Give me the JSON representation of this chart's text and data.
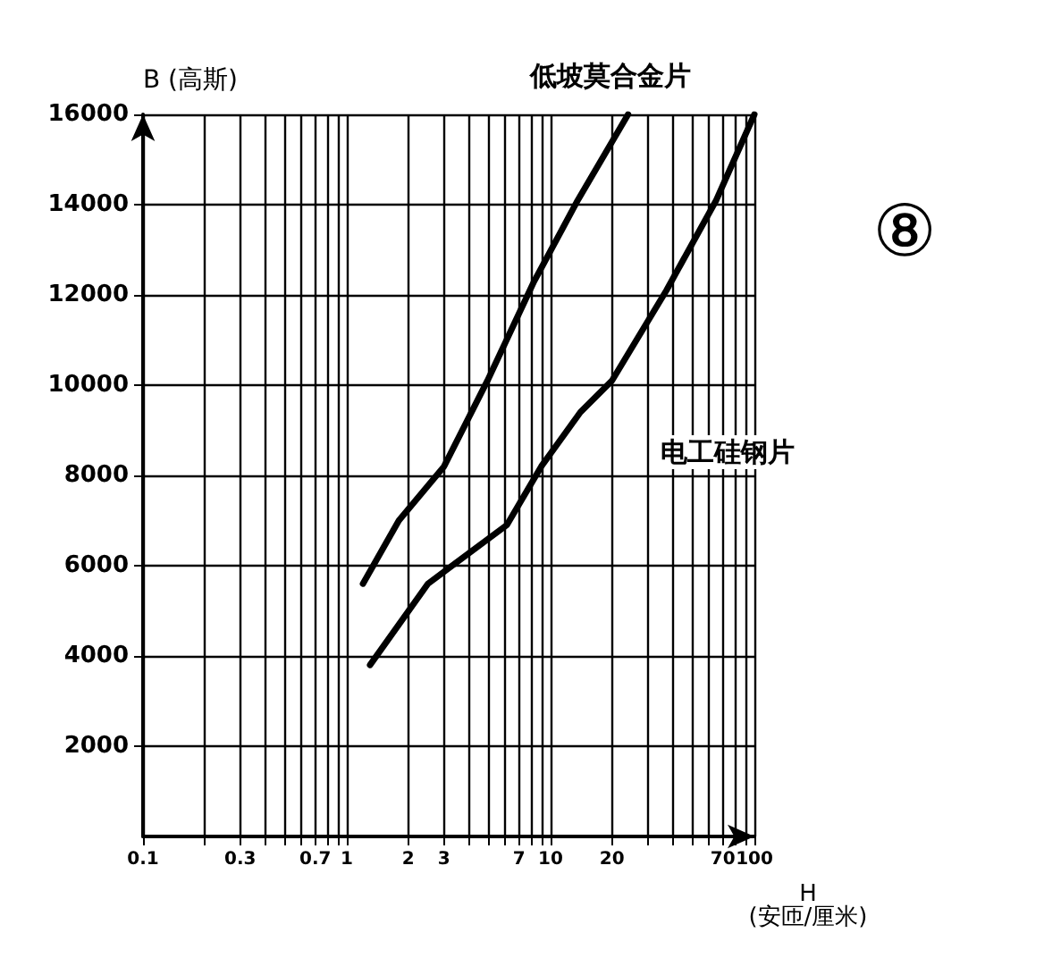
{
  "chart_data": {
    "type": "line",
    "ylabel": "B (高斯)",
    "xlabel": "H\n(安匝/厘米)",
    "annotations": [
      "⑧"
    ],
    "log": "x",
    "grid": true,
    "marker": "none",
    "line_style": "solid",
    "xlim": [
      0.1,
      100
    ],
    "ylim": [
      0,
      16000
    ],
    "xticks": [
      0.1,
      {
        "value": 0.2,
        "label": null
      },
      0.3,
      {
        "value": 0.4,
        "label": null
      },
      {
        "value": 0.5,
        "label": null
      },
      {
        "value": 0.6,
        "label": null
      },
      0.7,
      {
        "value": 0.8,
        "label": null
      },
      {
        "value": 0.9,
        "label": null
      },
      1,
      2,
      3,
      {
        "value": 4,
        "label": null
      },
      {
        "value": 5,
        "label": null
      },
      {
        "value": 6,
        "label": null
      },
      7,
      {
        "value": 8,
        "label": null
      },
      {
        "value": 9,
        "label": null
      },
      10,
      20,
      {
        "value": 30,
        "label": null
      },
      {
        "value": 40,
        "label": null
      },
      {
        "value": 50,
        "label": null
      },
      {
        "value": 60,
        "label": null
      },
      70,
      {
        "value": 80,
        "label": null
      },
      {
        "value": 90,
        "label": null
      },
      100
    ],
    "yticks": [
      2000,
      4000,
      6000,
      8000,
      10000,
      12000,
      14000,
      16000
    ],
    "series": [
      {
        "name": "低坡莫合金片",
        "color": "#000000",
        "x": [
          1.2,
          1.8,
          3,
          4.9,
          8.3,
          13.6,
          24
        ],
        "values": [
          5600,
          7000,
          8200,
          10100,
          12300,
          14100,
          16000
        ]
      },
      {
        "name": "电工硅钢片",
        "color": "#000000",
        "x": [
          1.3,
          2.5,
          6.1,
          9,
          14,
          20,
          37,
          65,
          100
        ],
        "values": [
          3800,
          5600,
          6900,
          8200,
          9400,
          10100,
          12100,
          14100,
          16000
        ]
      }
    ]
  }
}
